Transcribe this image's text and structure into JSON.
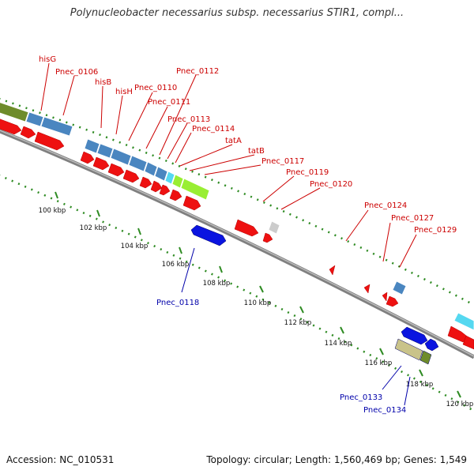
{
  "title": "Polynucleobacter necessarius subsp. necessarius STIR1, compl...",
  "footer": {
    "accession": "Accession: NC_010531",
    "summary": "Topology: circular; Length: 1,560,469 bp; Genes: 1,549"
  },
  "colors": {
    "label_forward": "#cc0000",
    "label_reverse": "#0000aa",
    "gene_red": "#ee1111",
    "gene_blue": "#0a14e0",
    "steel_blue": "#4a86c0",
    "olive": "#6e8c2a",
    "lime": "#99ee33",
    "cyan": "#55d8f0",
    "grey": "#cccccc",
    "khaki": "#c9c38a",
    "backbone": "#808080",
    "tick": "#2e8b22"
  },
  "scale_labels": [
    "100 kbp",
    "102 kbp",
    "104 kbp",
    "106 kbp",
    "108 kbp",
    "110 kbp",
    "112 kbp",
    "114 kbp",
    "116 kbp",
    "118 kbp",
    "120 kbp"
  ],
  "gene_labels": [
    {
      "name": "hisG",
      "color": "red"
    },
    {
      "name": "Pnec_0106",
      "color": "red"
    },
    {
      "name": "hisB",
      "color": "red"
    },
    {
      "name": "hisH",
      "color": "red"
    },
    {
      "name": "Pnec_0110",
      "color": "red"
    },
    {
      "name": "Pnec_0111",
      "color": "red"
    },
    {
      "name": "Pnec_0112",
      "color": "red"
    },
    {
      "name": "Pnec_0113",
      "color": "red"
    },
    {
      "name": "Pnec_0114",
      "color": "red"
    },
    {
      "name": "tatA",
      "color": "red"
    },
    {
      "name": "tatB",
      "color": "red"
    },
    {
      "name": "Pnec_0117",
      "color": "red"
    },
    {
      "name": "Pnec_0119",
      "color": "red"
    },
    {
      "name": "Pnec_0120",
      "color": "red"
    },
    {
      "name": "Pnec_0124",
      "color": "red"
    },
    {
      "name": "Pnec_0127",
      "color": "red"
    },
    {
      "name": "Pnec_0129",
      "color": "red"
    },
    {
      "name": "Pnec_0118",
      "color": "blue"
    },
    {
      "name": "Pnec_0133",
      "color": "blue"
    },
    {
      "name": "Pnec_0134",
      "color": "blue"
    }
  ]
}
